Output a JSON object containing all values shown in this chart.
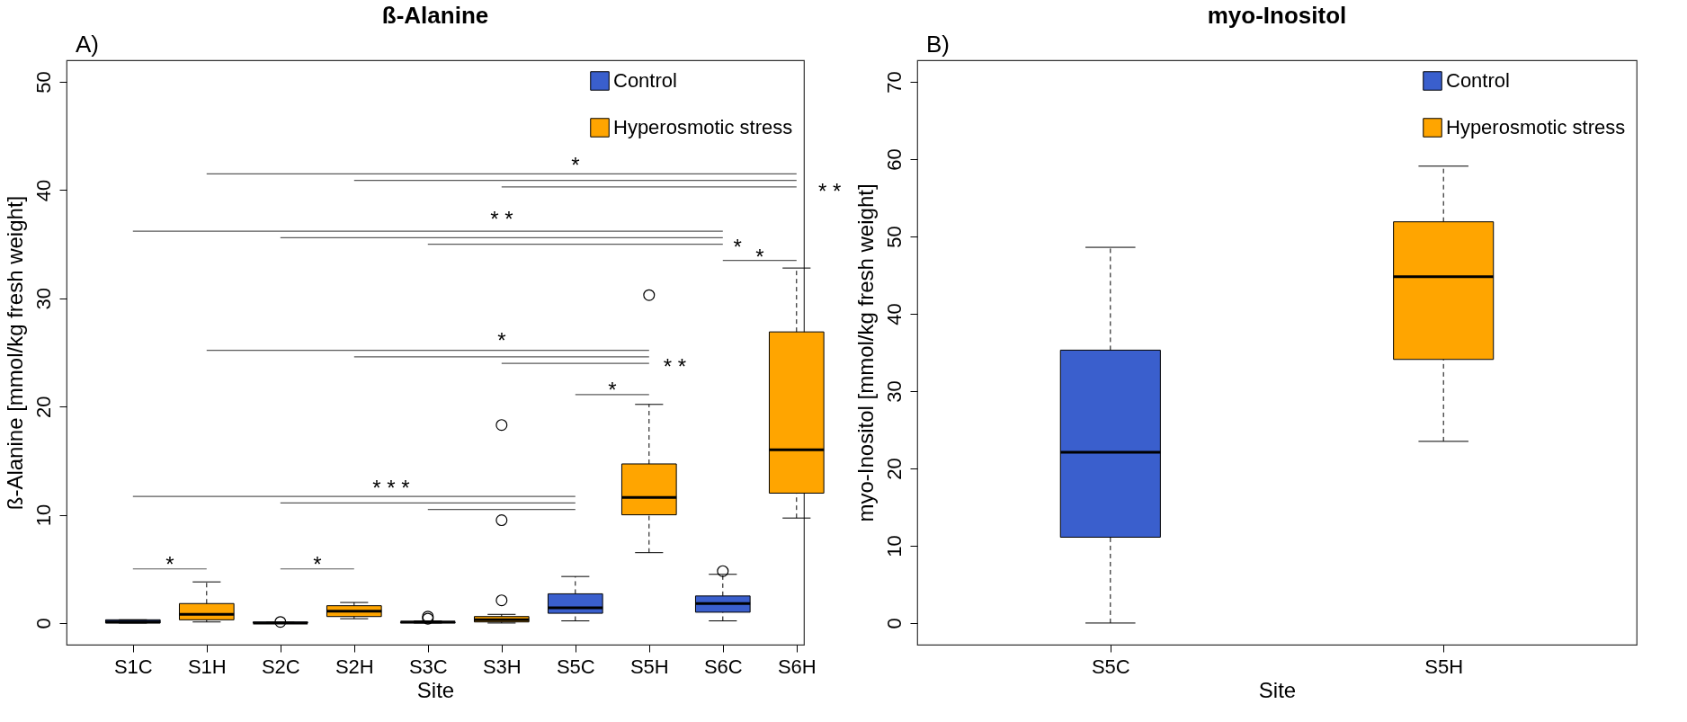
{
  "chart_data": [
    {
      "type": "box",
      "title": "ß-Alanine",
      "xlabel": "Site",
      "ylabel": "ß-Alanine [mmol/kg fresh weight]",
      "categories": [
        "S1C",
        "S1H",
        "S2C",
        "S2H",
        "S3C",
        "S3H",
        "S5C",
        "S5H",
        "S6C",
        "S6H"
      ],
      "ylim": [
        -2,
        52
      ],
      "yticks": [
        0,
        10,
        20,
        30,
        40,
        50
      ],
      "legend": "top right",
      "series": [
        {
          "name": "Control",
          "color": "#3a5fcd",
          "boxes": [
            {
              "low": 0,
              "q1": 0,
              "median": 0.1,
              "q3": 0.3,
              "high": 0.3
            },
            null,
            {
              "low": 0,
              "q1": 0,
              "median": 0,
              "q3": 0.1,
              "high": 0.1,
              "outliers": [
                0.1
              ]
            },
            null,
            {
              "low": 0,
              "q1": 0,
              "median": 0.1,
              "q3": 0.1,
              "high": 0.2,
              "outliers": [
                0.4,
                0.6
              ]
            },
            null,
            {
              "low": 0.2,
              "q1": 0.9,
              "median": 1.4,
              "q3": 2.7,
              "high": 4.3
            },
            null,
            {
              "low": 0.2,
              "q1": 1.0,
              "median": 1.8,
              "q3": 2.5,
              "high": 4.5,
              "outliers": [
                4.8
              ]
            },
            null
          ]
        },
        {
          "name": "Hyperosmotic stress",
          "color": "#ffa500",
          "boxes": [
            null,
            {
              "low": 0.1,
              "q1": 0.3,
              "median": 0.8,
              "q3": 1.8,
              "high": 3.8
            },
            null,
            {
              "low": 0.4,
              "q1": 0.6,
              "median": 1.1,
              "q3": 1.6,
              "high": 1.9
            },
            null,
            {
              "low": 0,
              "q1": 0.1,
              "median": 0.3,
              "q3": 0.6,
              "high": 0.8,
              "outliers": [
                2.1,
                9.5,
                18.3
              ]
            },
            null,
            {
              "low": 6.5,
              "q1": 10.0,
              "median": 11.6,
              "q3": 14.7,
              "high": 20.2,
              "outliers": [
                30.3
              ]
            },
            null,
            {
              "low": 9.7,
              "q1": 12.0,
              "median": 16.0,
              "q3": 26.9,
              "high": 32.8
            }
          ]
        },
        {
          "type": "line",
          "color": "#5a5a5a",
          "x": [
            "S1H",
            "S6H"
          ],
          "values": [
            41.5,
            41.5
          ]
        },
        {
          "type": "line",
          "color": "#5a5a5a",
          "x": [
            "S2H",
            "S6H"
          ],
          "values": [
            40.9,
            40.9
          ]
        },
        {
          "type": "line",
          "color": "#5a5a5a",
          "x": [
            "S3H",
            "S6H"
          ],
          "values": [
            40.3,
            40.3
          ]
        },
        {
          "type": "line",
          "color": "#5a5a5a",
          "x": [
            "S1C",
            "S6C"
          ],
          "values": [
            36.2,
            36.2
          ]
        },
        {
          "type": "line",
          "color": "#5a5a5a",
          "x": [
            "S2C",
            "S6C"
          ],
          "values": [
            35.6,
            35.6
          ]
        },
        {
          "type": "line",
          "color": "#5a5a5a",
          "x": [
            "S3C",
            "S6C"
          ],
          "values": [
            35.0,
            35.0
          ]
        },
        {
          "type": "line",
          "color": "#5a5a5a",
          "x": [
            "S6C",
            "S6H"
          ],
          "values": [
            33.5,
            33.5
          ]
        },
        {
          "type": "line",
          "color": "#5a5a5a",
          "x": [
            "S1H",
            "S5H"
          ],
          "values": [
            25.2,
            25.2
          ]
        },
        {
          "type": "line",
          "color": "#5a5a5a",
          "x": [
            "S2H",
            "S5H"
          ],
          "values": [
            24.6,
            24.6
          ]
        },
        {
          "type": "line",
          "color": "#5a5a5a",
          "x": [
            "S3H",
            "S5H"
          ],
          "values": [
            24.0,
            24.0
          ]
        },
        {
          "type": "line",
          "color": "#5a5a5a",
          "x": [
            "S5C",
            "S5H"
          ],
          "values": [
            21.1,
            21.1
          ]
        },
        {
          "type": "line",
          "color": "#5a5a5a",
          "x": [
            "S1C",
            "S5C"
          ],
          "values": [
            11.7,
            11.7
          ]
        },
        {
          "type": "line",
          "color": "#5a5a5a",
          "x": [
            "S2C",
            "S5C"
          ],
          "values": [
            11.1,
            11.1
          ]
        },
        {
          "type": "line",
          "color": "#5a5a5a",
          "x": [
            "S3C",
            "S5C"
          ],
          "values": [
            10.5,
            10.5
          ]
        },
        {
          "type": "line",
          "color": "#5a5a5a",
          "x": [
            "S1C",
            "S1H"
          ],
          "values": [
            5.0,
            5.0
          ]
        },
        {
          "type": "line",
          "color": "#5a5a5a",
          "x": [
            "S2C",
            "S2H"
          ],
          "values": [
            5.0,
            5.0
          ]
        }
      ],
      "annotations": [
        "A)",
        "*",
        "* *",
        "* *",
        "*",
        "*",
        "*",
        "* *",
        "*",
        "* * *",
        "*",
        "*"
      ]
    },
    {
      "type": "box",
      "title": "myo-Inositol",
      "xlabel": "Site",
      "ylabel": "myo-Inositol [mmol/kg fresh weight]",
      "categories": [
        "S5C",
        "S5H"
      ],
      "ylim": [
        -2.8,
        72.8
      ],
      "yticks": [
        0,
        10,
        20,
        30,
        40,
        50,
        60,
        70
      ],
      "legend": "top right",
      "series": [
        {
          "name": "Control",
          "color": "#3a5fcd",
          "boxes": [
            {
              "low": 0,
              "q1": 11.1,
              "median": 22.1,
              "q3": 35.3,
              "high": 48.6
            },
            null
          ]
        },
        {
          "name": "Hyperosmotic stress",
          "color": "#ffa500",
          "boxes": [
            null,
            {
              "low": 23.5,
              "q1": 34.1,
              "median": 44.8,
              "q3": 51.9,
              "high": 59.1
            }
          ]
        }
      ],
      "annotations": [
        "B)"
      ]
    }
  ]
}
